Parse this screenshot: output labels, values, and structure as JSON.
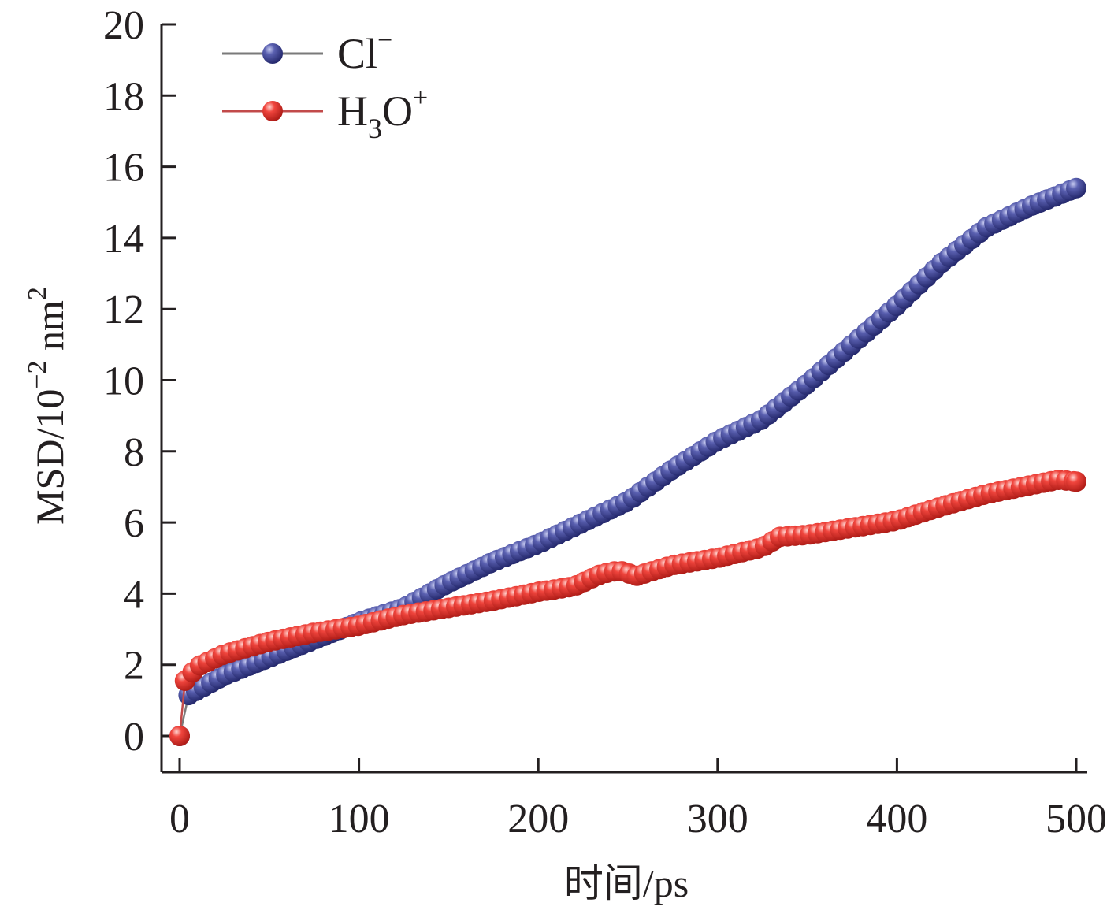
{
  "chart_data": {
    "type": "line",
    "title": "",
    "xlabel": "时间/ps",
    "ylabel": "MSD/10⁻² nm²",
    "ylabel_parts": {
      "main": "MSD/10",
      "exp": "−2",
      "unit": " nm",
      "unit_exp": "2"
    },
    "xlim": [
      -10,
      500
    ],
    "ylim": [
      -1,
      20
    ],
    "x_ticks": [
      0,
      100,
      200,
      300,
      400,
      500
    ],
    "y_ticks": [
      0,
      2,
      4,
      6,
      8,
      10,
      12,
      14,
      16,
      18,
      20
    ],
    "grid": false,
    "legend_position": "top-left",
    "colors": {
      "cl": "#3a3f8e",
      "h3o": "#e5312c",
      "cl_line": "#7a7a7a",
      "h3o_line": "#c24a4a",
      "axis": "#231f20"
    },
    "series": [
      {
        "key": "cl",
        "name": "Cl⁻",
        "label_parts": {
          "base": "Cl",
          "sup": "−"
        },
        "points": [
          [
            0,
            0
          ],
          [
            5,
            1.15
          ],
          [
            25,
            1.7
          ],
          [
            50,
            2.2
          ],
          [
            75,
            2.7
          ],
          [
            100,
            3.2
          ],
          [
            125,
            3.6
          ],
          [
            150,
            4.3
          ],
          [
            175,
            4.9
          ],
          [
            200,
            5.4
          ],
          [
            225,
            6.0
          ],
          [
            250,
            6.6
          ],
          [
            275,
            7.5
          ],
          [
            300,
            8.3
          ],
          [
            325,
            8.9
          ],
          [
            350,
            9.9
          ],
          [
            375,
            11.0
          ],
          [
            400,
            12.1
          ],
          [
            425,
            13.3
          ],
          [
            450,
            14.3
          ],
          [
            475,
            14.9
          ],
          [
            500,
            15.4
          ]
        ]
      },
      {
        "key": "h3o",
        "name": "H₃O⁺",
        "label_parts": {
          "base": "H",
          "sub": "3",
          "mid": "O",
          "sup": "+"
        },
        "points": [
          [
            0,
            0
          ],
          [
            3,
            1.55
          ],
          [
            10,
            1.95
          ],
          [
            25,
            2.3
          ],
          [
            50,
            2.65
          ],
          [
            75,
            2.9
          ],
          [
            100,
            3.1
          ],
          [
            125,
            3.4
          ],
          [
            150,
            3.6
          ],
          [
            175,
            3.8
          ],
          [
            200,
            4.05
          ],
          [
            220,
            4.2
          ],
          [
            235,
            4.55
          ],
          [
            245,
            4.65
          ],
          [
            255,
            4.5
          ],
          [
            275,
            4.8
          ],
          [
            300,
            5.0
          ],
          [
            325,
            5.3
          ],
          [
            335,
            5.6
          ],
          [
            350,
            5.65
          ],
          [
            375,
            5.85
          ],
          [
            400,
            6.05
          ],
          [
            425,
            6.45
          ],
          [
            450,
            6.8
          ],
          [
            475,
            7.05
          ],
          [
            490,
            7.2
          ],
          [
            500,
            7.15
          ]
        ]
      }
    ]
  }
}
